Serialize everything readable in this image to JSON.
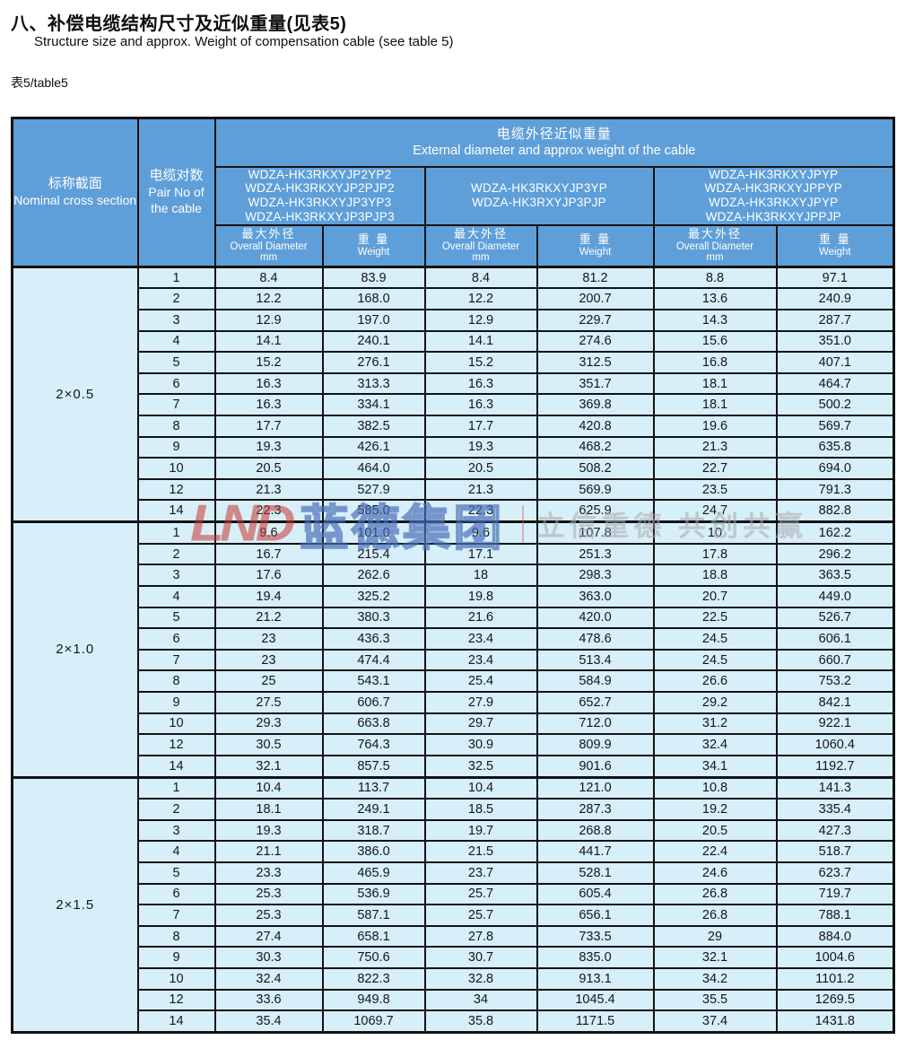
{
  "page": {
    "title_zh": "八、补偿电缆结构尺寸及近似重量(见表5)",
    "title_en": "Structure size and approx. Weight of compensation cable (see table 5)",
    "table_label": "表5/table5"
  },
  "watermark": {
    "logo": "LND",
    "company": "蓝德集团",
    "slogan": "立信重德 共创共赢"
  },
  "colors": {
    "header_blue": "#5f9fd9",
    "row_light_blue": "#d7eff9",
    "border_black": "#121212",
    "watermark_red": "#c63430",
    "watermark_blue": "#3460ba"
  },
  "table": {
    "cross_section_header": {
      "zh": "标称截面",
      "en": "Nominal cross section"
    },
    "pair_no_header": {
      "zh": "电缆对数",
      "en": "Pair No of the cable"
    },
    "diameter_weight_header": {
      "zh": "电缆外径近似重量",
      "en": "External diameter and approx weight of the cable"
    },
    "cable_type_groups": [
      [
        "WDZA-HK3RKXYJP2YP2",
        "WDZA-HK3RKXYJP2PJP2",
        "WDZA-HK3RKXYJP3YP3",
        "WDZA-HK3RKXYJP3PJP3"
      ],
      [
        "WDZA-HK3RKXYJP3YP",
        "WDZA-HK3RXYJP3PJP"
      ],
      [
        "WDZA-HK3RKXYJPYP",
        "WDZA-HK3RKXYJPPYP",
        "WDZA-HK3RKXYJPYP",
        "WDZA-HK3RKXYJPPJP"
      ]
    ],
    "sub_header": {
      "diameter_zh": "最大外径",
      "diameter_en": "Overall Diameter",
      "diameter_unit": "mm",
      "weight_zh": "重 量",
      "weight_en": "Weight"
    },
    "sections": [
      {
        "cross_section": "2×0.5",
        "rows": [
          {
            "pairs": "1",
            "values": [
              "8.4",
              "83.9",
              "8.4",
              "81.2",
              "8.8",
              "97.1"
            ]
          },
          {
            "pairs": "2",
            "values": [
              "12.2",
              "168.0",
              "12.2",
              "200.7",
              "13.6",
              "240.9"
            ]
          },
          {
            "pairs": "3",
            "values": [
              "12.9",
              "197.0",
              "12.9",
              "229.7",
              "14.3",
              "287.7"
            ]
          },
          {
            "pairs": "4",
            "values": [
              "14.1",
              "240.1",
              "14.1",
              "274.6",
              "15.6",
              "351.0"
            ]
          },
          {
            "pairs": "5",
            "values": [
              "15.2",
              "276.1",
              "15.2",
              "312.5",
              "16.8",
              "407.1"
            ]
          },
          {
            "pairs": "6",
            "values": [
              "16.3",
              "313.3",
              "16.3",
              "351.7",
              "18.1",
              "464.7"
            ]
          },
          {
            "pairs": "7",
            "values": [
              "16.3",
              "334.1",
              "16.3",
              "369.8",
              "18.1",
              "500.2"
            ]
          },
          {
            "pairs": "8",
            "values": [
              "17.7",
              "382.5",
              "17.7",
              "420.8",
              "19.6",
              "569.7"
            ]
          },
          {
            "pairs": "9",
            "values": [
              "19.3",
              "426.1",
              "19.3",
              "468.2",
              "21.3",
              "635.8"
            ]
          },
          {
            "pairs": "10",
            "values": [
              "20.5",
              "464.0",
              "20.5",
              "508.2",
              "22.7",
              "694.0"
            ]
          },
          {
            "pairs": "12",
            "values": [
              "21.3",
              "527.9",
              "21.3",
              "569.9",
              "23.5",
              "791.3"
            ]
          },
          {
            "pairs": "14",
            "values": [
              "22.3",
              "585.0",
              "22.3",
              "625.9",
              "24.7",
              "882.8"
            ]
          }
        ]
      },
      {
        "cross_section": "2×1.0",
        "rows": [
          {
            "pairs": "1",
            "values": [
              "9.6",
              "101.0",
              "9.6",
              "107.8",
              "10",
              "162.2"
            ]
          },
          {
            "pairs": "2",
            "values": [
              "16.7",
              "215.4",
              "17.1",
              "251.3",
              "17.8",
              "296.2"
            ]
          },
          {
            "pairs": "3",
            "values": [
              "17.6",
              "262.6",
              "18",
              "298.3",
              "18.8",
              "363.5"
            ]
          },
          {
            "pairs": "4",
            "values": [
              "19.4",
              "325.2",
              "19.8",
              "363.0",
              "20.7",
              "449.0"
            ]
          },
          {
            "pairs": "5",
            "values": [
              "21.2",
              "380.3",
              "21.6",
              "420.0",
              "22.5",
              "526.7"
            ]
          },
          {
            "pairs": "6",
            "values": [
              "23",
              "436.3",
              "23.4",
              "478.6",
              "24.5",
              "606.1"
            ]
          },
          {
            "pairs": "7",
            "values": [
              "23",
              "474.4",
              "23.4",
              "513.4",
              "24.5",
              "660.7"
            ]
          },
          {
            "pairs": "8",
            "values": [
              "25",
              "543.1",
              "25.4",
              "584.9",
              "26.6",
              "753.2"
            ]
          },
          {
            "pairs": "9",
            "values": [
              "27.5",
              "606.7",
              "27.9",
              "652.7",
              "29.2",
              "842.1"
            ]
          },
          {
            "pairs": "10",
            "values": [
              "29.3",
              "663.8",
              "29.7",
              "712.0",
              "31.2",
              "922.1"
            ]
          },
          {
            "pairs": "12",
            "values": [
              "30.5",
              "764.3",
              "30.9",
              "809.9",
              "32.4",
              "1060.4"
            ]
          },
          {
            "pairs": "14",
            "values": [
              "32.1",
              "857.5",
              "32.5",
              "901.6",
              "34.1",
              "1192.7"
            ]
          }
        ]
      },
      {
        "cross_section": "2×1.5",
        "rows": [
          {
            "pairs": "1",
            "values": [
              "10.4",
              "113.7",
              "10.4",
              "121.0",
              "10.8",
              "141.3"
            ]
          },
          {
            "pairs": "2",
            "values": [
              "18.1",
              "249.1",
              "18.5",
              "287.3",
              "19.2",
              "335.4"
            ]
          },
          {
            "pairs": "3",
            "values": [
              "19.3",
              "318.7",
              "19.7",
              "268.8",
              "20.5",
              "427.3"
            ]
          },
          {
            "pairs": "4",
            "values": [
              "21.1",
              "386.0",
              "21.5",
              "441.7",
              "22.4",
              "518.7"
            ]
          },
          {
            "pairs": "5",
            "values": [
              "23.3",
              "465.9",
              "23.7",
              "528.1",
              "24.6",
              "623.7"
            ]
          },
          {
            "pairs": "6",
            "values": [
              "25.3",
              "536.9",
              "25.7",
              "605.4",
              "26.8",
              "719.7"
            ]
          },
          {
            "pairs": "7",
            "values": [
              "25.3",
              "587.1",
              "25.7",
              "656.1",
              "26.8",
              "788.1"
            ]
          },
          {
            "pairs": "8",
            "values": [
              "27.4",
              "658.1",
              "27.8",
              "733.5",
              "29",
              "884.0"
            ]
          },
          {
            "pairs": "9",
            "values": [
              "30.3",
              "750.6",
              "30.7",
              "835.0",
              "32.1",
              "1004.6"
            ]
          },
          {
            "pairs": "10",
            "values": [
              "32.4",
              "822.3",
              "32.8",
              "913.1",
              "34.2",
              "1101.2"
            ]
          },
          {
            "pairs": "12",
            "values": [
              "33.6",
              "949.8",
              "34",
              "1045.4",
              "35.5",
              "1269.5"
            ]
          },
          {
            "pairs": "14",
            "values": [
              "35.4",
              "1069.7",
              "35.8",
              "1171.5",
              "37.4",
              "1431.8"
            ]
          }
        ]
      }
    ]
  }
}
